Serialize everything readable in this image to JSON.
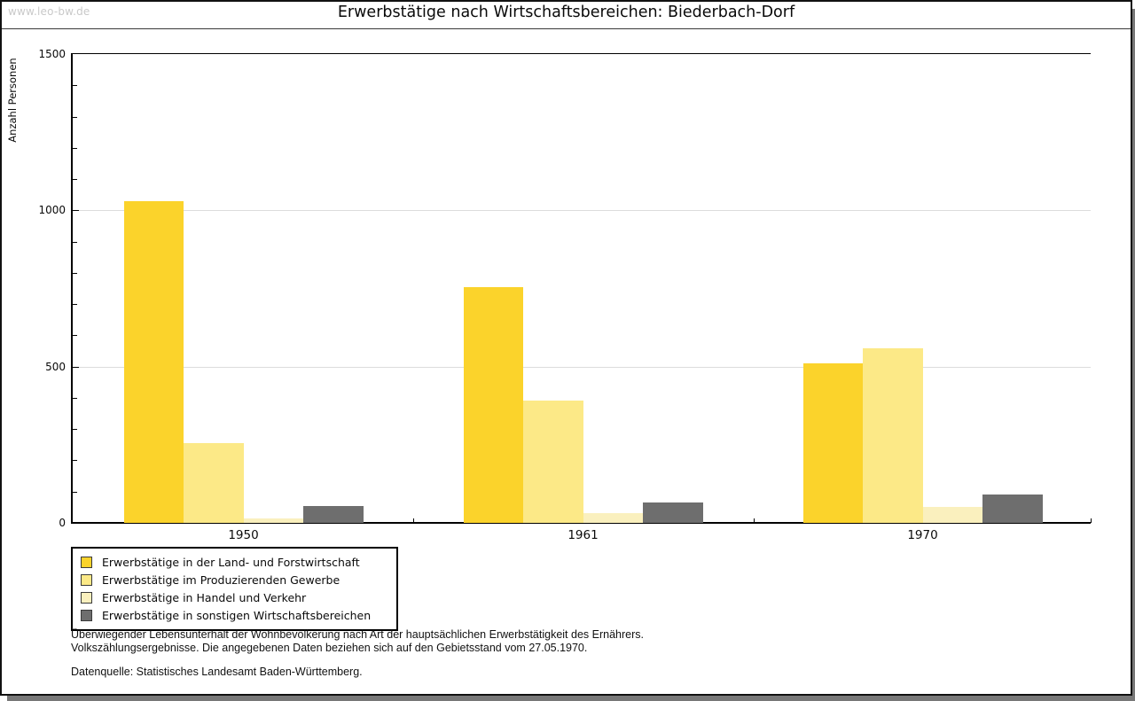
{
  "watermark": "www.leo-bw.de",
  "title": "Erwerbstätige nach Wirtschaftsbereichen: Biederbach-Dorf",
  "chart_data": {
    "type": "bar",
    "title": "Erwerbstätige nach Wirtschaftsbereichen: Biederbach-Dorf",
    "xlabel": "",
    "ylabel": "Anzahl Personen",
    "ylim": [
      0,
      1500
    ],
    "ytick_major": [
      0,
      500,
      1000,
      1500
    ],
    "ytick_minor_step": 100,
    "grid_values": [
      500,
      1000
    ],
    "grid": true,
    "legend_position": "bottom-left",
    "categories": [
      "1950",
      "1961",
      "1970"
    ],
    "series": [
      {
        "name": "Erwerbstätige in der Land- und Forstwirtschaft",
        "color": "#FBD32B",
        "values": [
          1030,
          755,
          510
        ]
      },
      {
        "name": "Erwerbstätige im Produzierenden Gewerbe",
        "color": "#FCE987",
        "values": [
          255,
          390,
          560
        ]
      },
      {
        "name": "Erwerbstätige in Handel und Verkehr",
        "color": "#FAF0BE",
        "values": [
          15,
          30,
          50
        ]
      },
      {
        "name": "Erwerbstätige in sonstigen Wirtschaftsbereichen",
        "color": "#6E6E6E",
        "values": [
          55,
          65,
          90
        ]
      }
    ]
  },
  "colors": {
    "gridline": "#dcdcdc",
    "axis": "#000000",
    "shadow": "#787878",
    "watermark": "#c9c9c9"
  },
  "notes": {
    "line1": "Überwiegender Lebensunterhalt der Wohnbevölkerung nach Art der hauptsächlichen Erwerbstätigkeit des Ernährers.",
    "line2": "Volkszählungsergebnisse. Die angegebenen Daten beziehen sich auf den Gebietsstand vom 27.05.1970."
  },
  "source": "Datenquelle: Statistisches Landesamt Baden-Württemberg."
}
